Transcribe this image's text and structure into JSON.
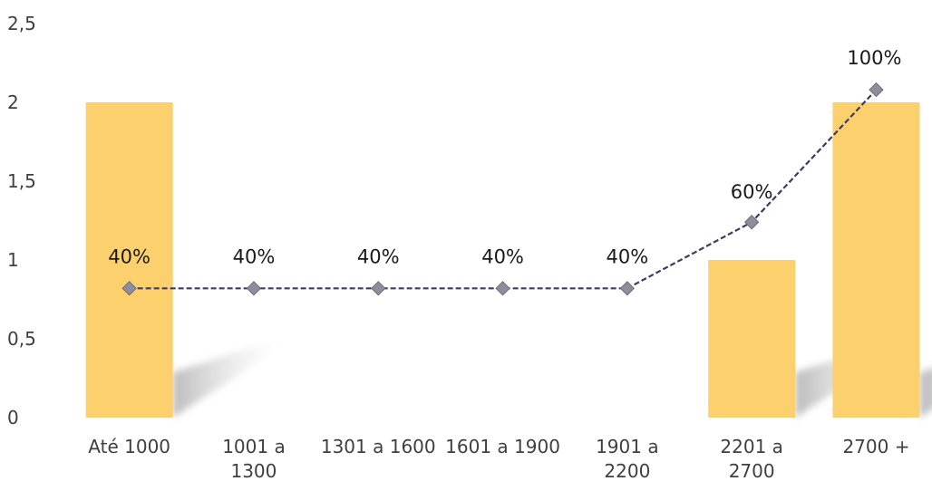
{
  "chart_data": {
    "type": "bar",
    "categories": [
      [
        "Até 1000"
      ],
      [
        "1001 a",
        "1300"
      ],
      [
        "1301 a 1600"
      ],
      [
        "1601 a 1900"
      ],
      [
        "1901 a",
        "2200"
      ],
      [
        "2201 a",
        "2700"
      ],
      [
        "2700 +"
      ]
    ],
    "series": [
      {
        "type": "bar",
        "values": [
          2,
          0,
          0,
          0,
          0,
          1,
          2
        ],
        "color": "#FDD06E"
      },
      {
        "type": "line",
        "values": [
          0.82,
          0.82,
          0.82,
          0.82,
          0.82,
          1.24,
          2.08
        ],
        "labels": [
          "40%",
          "40%",
          "40%",
          "40%",
          "40%",
          "60%",
          "100%"
        ],
        "color": "#3F3A63",
        "marker_color": "#8E8D99"
      }
    ],
    "yticks": [
      "0",
      "0,5",
      "1",
      "1,5",
      "2",
      "2,5"
    ],
    "ylim": [
      0,
      2.5
    ],
    "title": "",
    "xlabel": "",
    "ylabel": "",
    "grid": false,
    "legend": false
  }
}
